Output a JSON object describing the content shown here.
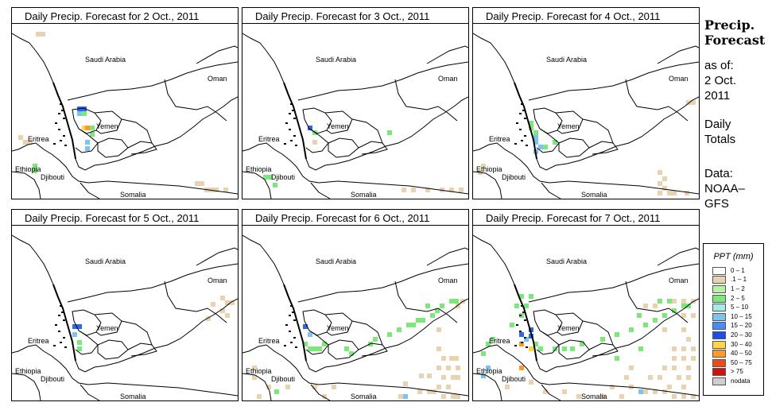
{
  "panels": [
    {
      "title": "Daily Precip. Forecast for  2 Oct., 2011",
      "precip": [
        [
          "tan",
          30,
          40
        ],
        [
          "tan",
          36,
          40
        ],
        [
          "blue",
          82,
          134
        ],
        [
          "blue",
          88,
          134
        ],
        [
          "ltblue",
          82,
          140
        ],
        [
          "green",
          88,
          140
        ],
        [
          "yellow",
          88,
          158
        ],
        [
          "orange",
          92,
          158
        ],
        [
          "green",
          98,
          158
        ],
        [
          "green",
          98,
          166
        ],
        [
          "ltblue",
          92,
          176
        ],
        [
          "ltblue",
          92,
          184
        ],
        [
          "tan",
          8,
          170
        ],
        [
          "tan",
          14,
          176
        ],
        [
          "tan",
          20,
          176
        ],
        [
          "green",
          26,
          206
        ],
        [
          "green",
          26,
          212
        ],
        [
          "tan",
          230,
          228
        ],
        [
          "tan",
          236,
          228
        ],
        [
          "tan",
          242,
          236
        ],
        [
          "tan",
          248,
          236
        ],
        [
          "tan",
          254,
          236
        ],
        [
          "tan",
          266,
          236
        ],
        [
          "green",
          290,
          242
        ]
      ]
    },
    {
      "title": "Daily Precip. Forecast for  3 Oct., 2011",
      "precip": [
        [
          "blue",
          82,
          158
        ],
        [
          "green",
          88,
          164
        ],
        [
          "tan",
          88,
          176
        ],
        [
          "green",
          182,
          164
        ],
        [
          "green",
          26,
          220
        ],
        [
          "green",
          32,
          220
        ],
        [
          "green",
          38,
          230
        ],
        [
          "tan",
          200,
          236
        ],
        [
          "tan",
          212,
          236
        ],
        [
          "tan",
          230,
          236
        ],
        [
          "tan",
          248,
          236
        ],
        [
          "tan",
          260,
          236
        ],
        [
          "tan",
          272,
          236
        ]
      ]
    },
    {
      "title": "Daily Precip. Forecast for  4 Oct., 2011",
      "precip": [
        [
          "green",
          70,
          152
        ],
        [
          "green",
          70,
          158
        ],
        [
          "green",
          76,
          164
        ],
        [
          "ltblue",
          76,
          170
        ],
        [
          "ltblue",
          76,
          176
        ],
        [
          "ltblue",
          82,
          182
        ],
        [
          "ltblue",
          76,
          188
        ],
        [
          "green",
          88,
          182
        ],
        [
          "green",
          100,
          176
        ],
        [
          "tan",
          268,
          126
        ],
        [
          "tan",
          274,
          126
        ],
        [
          "tan",
          232,
          214
        ],
        [
          "tan",
          238,
          222
        ],
        [
          "tan",
          232,
          228
        ],
        [
          "tan",
          238,
          234
        ],
        [
          "tan",
          232,
          240
        ],
        [
          "tan",
          244,
          240
        ],
        [
          "tan",
          250,
          240
        ],
        [
          "tan",
          266,
          240
        ],
        [
          "tan",
          10,
          206
        ],
        [
          "tan",
          6,
          214
        ]
      ]
    },
    {
      "title": "Daily Precip. Forecast for  5 Oct., 2011",
      "precip": [
        [
          "blue",
          76,
          408
        ],
        [
          "blue",
          82,
          408
        ],
        [
          "ltblue",
          76,
          418
        ],
        [
          "green",
          82,
          428
        ],
        [
          "green",
          82,
          436
        ],
        [
          "tan",
          250,
          380
        ],
        [
          "tan",
          262,
          372
        ],
        [
          "tan",
          268,
          378
        ],
        [
          "tan",
          274,
          378
        ],
        [
          "tan",
          262,
          388
        ],
        [
          "tan",
          244,
          398
        ],
        [
          "tan",
          268,
          394
        ]
      ]
    },
    {
      "title": "Daily Precip. Forecast for  6 Oct., 2011",
      "precip": [
        [
          "blue",
          76,
          408
        ],
        [
          "ltblue",
          82,
          418
        ],
        [
          "green",
          76,
          430
        ],
        [
          "green",
          82,
          436
        ],
        [
          "green",
          88,
          436
        ],
        [
          "green",
          94,
          436
        ],
        [
          "green",
          100,
          430
        ],
        [
          "green",
          128,
          436
        ],
        [
          "green",
          134,
          442
        ],
        [
          "green",
          158,
          430
        ],
        [
          "green",
          164,
          424
        ],
        [
          "green",
          182,
          418
        ],
        [
          "green",
          194,
          412
        ],
        [
          "green",
          206,
          406
        ],
        [
          "green",
          212,
          406
        ],
        [
          "green",
          218,
          400
        ],
        [
          "green",
          224,
          400
        ],
        [
          "green",
          236,
          394
        ],
        [
          "green",
          242,
          388
        ],
        [
          "green",
          230,
          382
        ],
        [
          "green",
          248,
          382
        ],
        [
          "green",
          260,
          376
        ],
        [
          "green",
          266,
          376
        ],
        [
          "tan",
          274,
          376
        ],
        [
          "tan",
          268,
          382
        ],
        [
          "tan",
          244,
          412
        ],
        [
          "tan",
          244,
          436
        ],
        [
          "tan",
          250,
          448
        ],
        [
          "tan",
          260,
          448
        ],
        [
          "tan",
          266,
          448
        ],
        [
          "tan",
          244,
          460
        ],
        [
          "tan",
          256,
          460
        ],
        [
          "tan",
          268,
          460
        ],
        [
          "tan",
          222,
          470
        ],
        [
          "tan",
          232,
          470
        ],
        [
          "tan",
          250,
          472
        ],
        [
          "tan",
          262,
          472
        ],
        [
          "tan",
          268,
          472
        ],
        [
          "tan",
          244,
          484
        ],
        [
          "tan",
          256,
          484
        ],
        [
          "tan",
          220,
          490
        ],
        [
          "tan",
          232,
          490
        ],
        [
          "tan",
          238,
          490
        ],
        [
          "tan",
          250,
          496
        ],
        [
          "tan",
          262,
          496
        ],
        [
          "tan",
          268,
          496
        ],
        [
          "tan",
          202,
          480
        ],
        [
          "tan",
          196,
          496
        ],
        [
          "ltblue",
          202,
          496
        ],
        [
          "tan",
          12,
          460
        ],
        [
          "tan",
          12,
          472
        ],
        [
          "tan",
          30,
          484
        ],
        [
          "tan",
          54,
          484
        ],
        [
          "tan",
          88,
          484
        ],
        [
          "tan",
          112,
          484
        ],
        [
          "tan",
          100,
          496
        ],
        [
          "tan",
          18,
          496
        ],
        [
          "green",
          40,
          490
        ]
      ]
    },
    {
      "title": "Daily Precip. Forecast for  7 Oct., 2011",
      "precip": [
        [
          "green",
          58,
          370
        ],
        [
          "green",
          70,
          370
        ],
        [
          "green",
          52,
          382
        ],
        [
          "green",
          64,
          382
        ],
        [
          "green",
          58,
          394
        ],
        [
          "green",
          46,
          406
        ],
        [
          "blue",
          70,
          412
        ],
        [
          "blue",
          58,
          418
        ],
        [
          "ltblue",
          64,
          424
        ],
        [
          "blue",
          70,
          420
        ],
        [
          "green",
          76,
          430
        ],
        [
          "green",
          82,
          436
        ],
        [
          "yellow",
          70,
          436
        ],
        [
          "orange",
          58,
          430
        ],
        [
          "orange",
          58,
          460
        ],
        [
          "ltblue",
          16,
          460
        ],
        [
          "ltblue",
          10,
          470
        ],
        [
          "green",
          22,
          424
        ],
        [
          "green",
          16,
          430
        ],
        [
          "green",
          10,
          442
        ],
        [
          "green",
          100,
          436
        ],
        [
          "green",
          112,
          436
        ],
        [
          "green",
          122,
          436
        ],
        [
          "green",
          134,
          430
        ],
        [
          "green",
          160,
          424
        ],
        [
          "green",
          178,
          418
        ],
        [
          "green",
          196,
          412
        ],
        [
          "green",
          214,
          406
        ],
        [
          "green",
          226,
          400
        ],
        [
          "green",
          238,
          394
        ],
        [
          "green",
          250,
          388
        ],
        [
          "green",
          262,
          382
        ],
        [
          "green",
          268,
          382
        ],
        [
          "green",
          206,
          394
        ],
        [
          "green",
          232,
          376
        ],
        [
          "green",
          244,
          376
        ],
        [
          "tan",
          214,
          382
        ],
        [
          "tan",
          226,
          382
        ],
        [
          "tan",
          250,
          376
        ],
        [
          "tan",
          262,
          376
        ],
        [
          "tan",
          274,
          376
        ],
        [
          "tan",
          262,
          394
        ],
        [
          "tan",
          274,
          394
        ],
        [
          "tan",
          238,
          412
        ],
        [
          "tan",
          262,
          412
        ],
        [
          "tan",
          268,
          424
        ],
        [
          "tan",
          250,
          436
        ],
        [
          "tan",
          262,
          436
        ],
        [
          "tan",
          274,
          436
        ],
        [
          "tan",
          250,
          448
        ],
        [
          "tan",
          262,
          448
        ],
        [
          "tan",
          274,
          448
        ],
        [
          "tan",
          238,
          460
        ],
        [
          "tan",
          250,
          460
        ],
        [
          "tan",
          268,
          460
        ],
        [
          "tan",
          220,
          472
        ],
        [
          "tan",
          232,
          472
        ],
        [
          "tan",
          256,
          472
        ],
        [
          "tan",
          268,
          472
        ],
        [
          "tan",
          244,
          484
        ],
        [
          "tan",
          262,
          484
        ],
        [
          "tan",
          214,
          490
        ],
        [
          "tan",
          226,
          490
        ],
        [
          "tan",
          238,
          490
        ],
        [
          "tan",
          250,
          496
        ],
        [
          "tan",
          262,
          496
        ],
        [
          "tan",
          274,
          496
        ],
        [
          "tan",
          196,
          484
        ],
        [
          "ltblue",
          208,
          490
        ],
        [
          "tan",
          184,
          496
        ],
        [
          "tan",
          196,
          460
        ],
        [
          "tan",
          190,
          472
        ],
        [
          "green",
          178,
          448
        ],
        [
          "green",
          208,
          436
        ],
        [
          "tan",
          40,
          484
        ],
        [
          "tan",
          70,
          478
        ],
        [
          "tan",
          88,
          490
        ],
        [
          "tan",
          112,
          490
        ],
        [
          "tan",
          130,
          496
        ],
        [
          "tan",
          160,
          496
        ],
        [
          "tan",
          172,
          484
        ]
      ]
    }
  ],
  "labels": {
    "saudi": "Saudi Arabia",
    "oman": "Oman",
    "yemen": "Yemen",
    "eritrea": "Eritrea",
    "ethiopia": "Ethiopia",
    "djibouti": "Djibouti",
    "somalia": "Somalia"
  },
  "side": {
    "title_line1": "Precip.",
    "title_line2": "Forecast",
    "asof": "as of:",
    "date1": "2 Oct.",
    "date2": "2011",
    "daily1": "Daily",
    "daily2": "Totals",
    "data1": "Data:",
    "data2": "NOAA–",
    "data3": "GFS"
  },
  "legend": {
    "title": "PPT (mm)",
    "items": [
      {
        "label": "0 – 1",
        "color": "#ffffff"
      },
      {
        "label": ".1 – 1",
        "color": "#e8d3b0"
      },
      {
        "label": "1 – 2",
        "color": "#b8f0a8"
      },
      {
        "label": "2 – 5",
        "color": "#7ce87c"
      },
      {
        "label": "5 – 10",
        "color": "#a8e8ec"
      },
      {
        "label": "10 – 15",
        "color": "#7cc4ef"
      },
      {
        "label": "15 – 20",
        "color": "#4b8cf0"
      },
      {
        "label": "20 – 30",
        "color": "#1c50e0"
      },
      {
        "label": "30 – 40",
        "color": "#ffd54a"
      },
      {
        "label": "40 – 50",
        "color": "#ff9a2a"
      },
      {
        "label": "50 – 75",
        "color": "#f04a1a"
      },
      {
        "label": "> 75",
        "color": "#c81414"
      },
      {
        "label": "nodata",
        "color": "#cfcfcf"
      }
    ]
  },
  "colors": {
    "tan": "#e8d3b0",
    "green": "#7ce87c",
    "ltgreen": "#b8f0a8",
    "ltblue": "#7cc4ef",
    "blue": "#2c68e8",
    "yellow": "#ffd54a",
    "orange": "#ff9a2a"
  }
}
